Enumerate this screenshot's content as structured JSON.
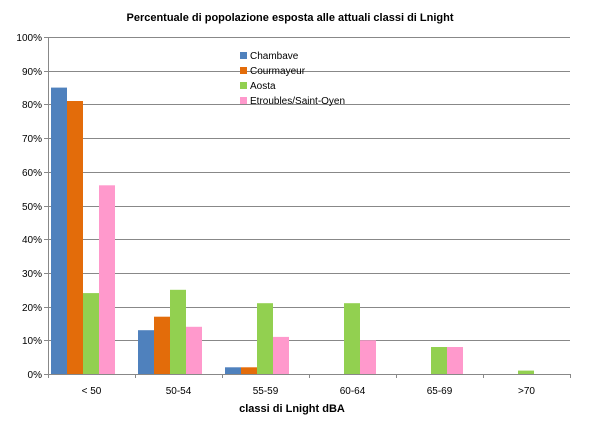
{
  "chart_data": {
    "type": "bar",
    "title": "Percentuale di popolazione esposta alle attuali classi di Lnight",
    "xlabel": "classi di Lnight dBA",
    "ylabel": "",
    "categories": [
      "< 50",
      "50-54",
      "55-59",
      "60-64",
      "65-69",
      ">70"
    ],
    "ylim": [
      0,
      100
    ],
    "y_ticks": [
      "0%",
      "10%",
      "20%",
      "30%",
      "40%",
      "50%",
      "60%",
      "70%",
      "80%",
      "90%",
      "100%"
    ],
    "grid": true,
    "legend_position": "top-center",
    "series": [
      {
        "name": "Chambave",
        "color": "#4f81bd",
        "values": [
          85,
          13,
          2,
          0,
          0,
          0
        ]
      },
      {
        "name": "Courmayeur",
        "color": "#e36c0a",
        "values": [
          81,
          17,
          2,
          0,
          0,
          0
        ]
      },
      {
        "name": "Aosta",
        "color": "#92d050",
        "values": [
          24,
          25,
          21,
          21,
          8,
          1
        ]
      },
      {
        "name": "Etroubles/Saint-Oyen",
        "color": "#ff99cc",
        "values": [
          56,
          14,
          11,
          10,
          8,
          0
        ]
      }
    ]
  }
}
